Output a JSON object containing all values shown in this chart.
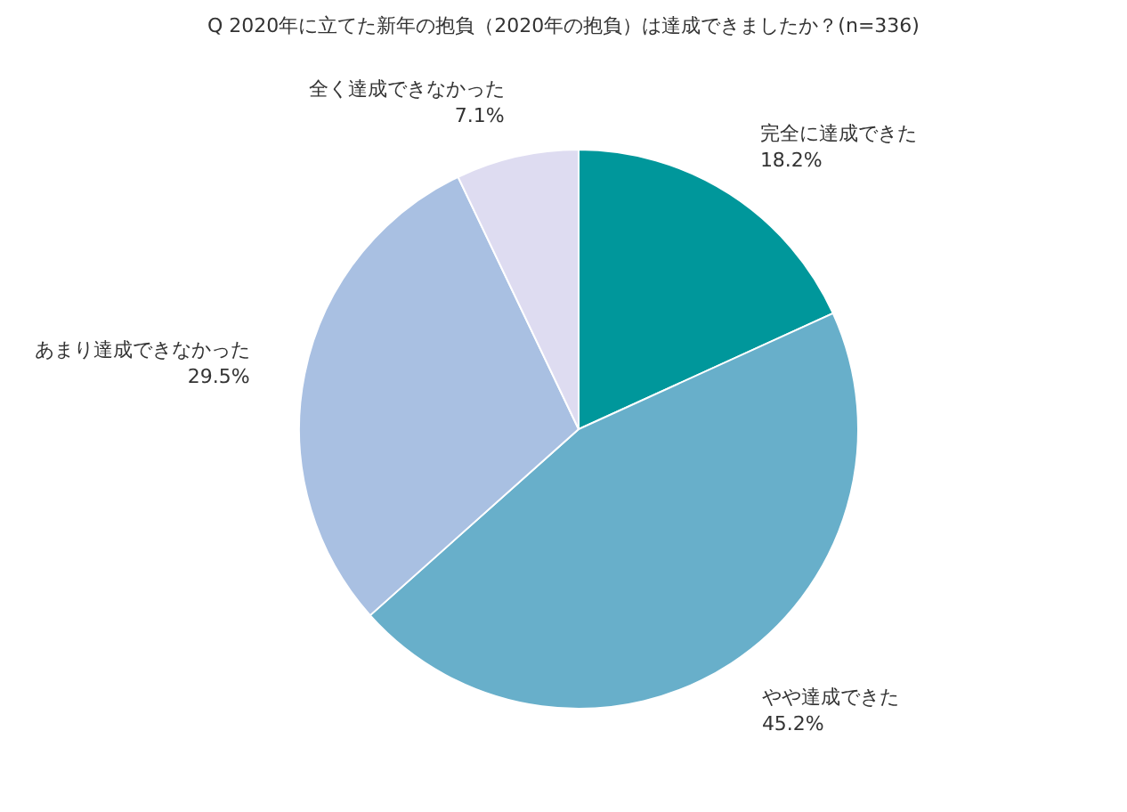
{
  "chart_data": {
    "type": "pie",
    "title": "Q 2020年に立てた新年の抱負（2020年の抱負）は達成できましたか？(n=336)",
    "categories": [
      "完全に達成できた",
      "やや達成できた",
      "あまり達成できなかった",
      "全く達成できなかった"
    ],
    "values": [
      18.2,
      45.2,
      29.5,
      7.1
    ],
    "colors": [
      "#00979b",
      "#68afca",
      "#a9c0e2",
      "#dedcf1"
    ],
    "value_labels": [
      "18.2%",
      "45.2%",
      "29.5%",
      "7.1%"
    ],
    "legend": false
  }
}
